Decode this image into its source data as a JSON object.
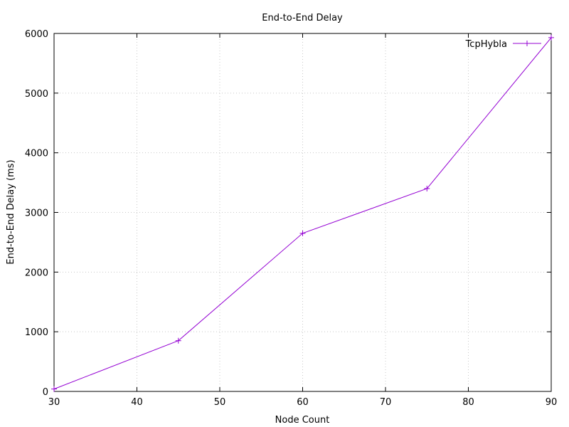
{
  "chart_data": {
    "type": "line",
    "title": "End-to-End Delay",
    "xlabel": "Node Count",
    "ylabel": "End-to-End Delay (ms)",
    "xlim": [
      30,
      90
    ],
    "ylim": [
      0,
      6000
    ],
    "xticks": [
      30,
      40,
      50,
      60,
      70,
      80,
      90
    ],
    "yticks": [
      0,
      1000,
      2000,
      3000,
      4000,
      5000,
      6000
    ],
    "grid": true,
    "legend_position": "top-right",
    "series": [
      {
        "name": "TcpHybla",
        "color": "#9400d3",
        "marker": "plus",
        "x": [
          30,
          45,
          60,
          75,
          90
        ],
        "y": [
          40,
          850,
          2650,
          3400,
          5930
        ]
      }
    ]
  }
}
